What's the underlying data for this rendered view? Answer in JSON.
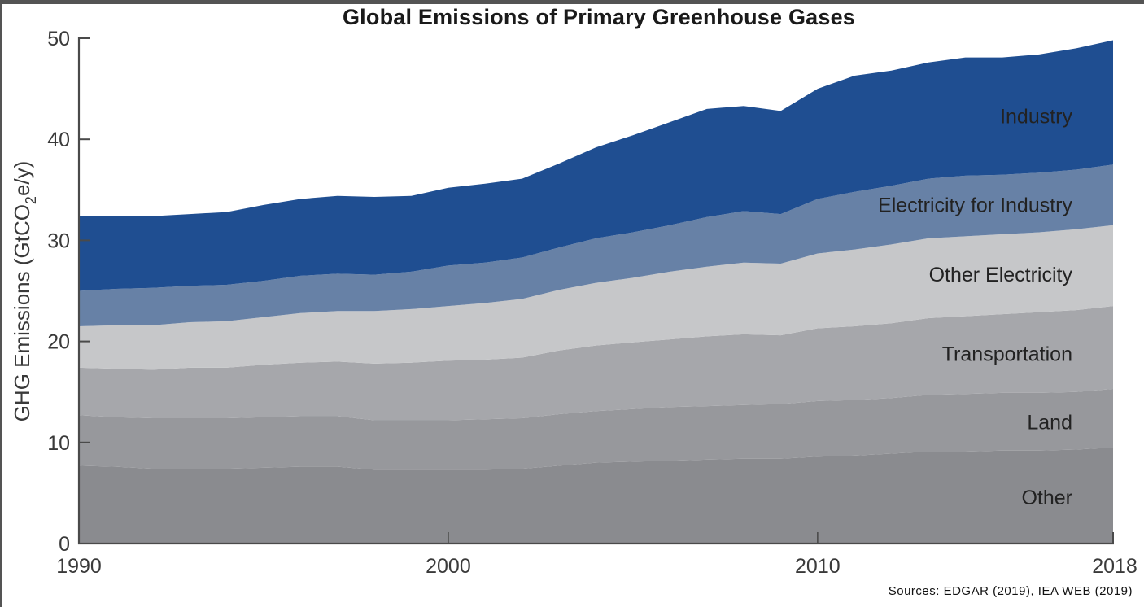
{
  "chart_data": {
    "type": "area",
    "stacked": true,
    "title": "Global Emissions of Primary Greenhouse Gases",
    "xlabel": "",
    "ylabel": "GHG Emissions (GtCO2e/y)",
    "ylabel_parts": {
      "pre": "GHG Emissions (GtCO",
      "sub": "2",
      "post": "e/y)"
    },
    "xlim": [
      1990,
      2018
    ],
    "ylim": [
      0,
      50
    ],
    "x_ticks": [
      1990,
      2000,
      2010,
      2018
    ],
    "y_ticks": [
      0,
      10,
      20,
      30,
      40,
      50
    ],
    "grid": false,
    "legend": "inline-right",
    "source_note": "Sources: EDGAR (2019), IEA WEB (2019)",
    "x": [
      1990,
      1991,
      1992,
      1993,
      1994,
      1995,
      1996,
      1997,
      1998,
      1999,
      2000,
      2001,
      2002,
      2003,
      2004,
      2005,
      2006,
      2007,
      2008,
      2009,
      2010,
      2011,
      2012,
      2013,
      2014,
      2015,
      2016,
      2017,
      2018
    ],
    "series": [
      {
        "name": "Other",
        "color": "#8a8b8f",
        "values": [
          7.7,
          7.6,
          7.4,
          7.4,
          7.4,
          7.5,
          7.6,
          7.6,
          7.3,
          7.3,
          7.3,
          7.3,
          7.4,
          7.7,
          8.0,
          8.1,
          8.2,
          8.3,
          8.4,
          8.4,
          8.6,
          8.7,
          8.9,
          9.1,
          9.1,
          9.2,
          9.2,
          9.3,
          9.5
        ]
      },
      {
        "name": "Land",
        "color": "#97989c",
        "values": [
          5.0,
          4.9,
          5.0,
          5.0,
          5.0,
          5.0,
          5.0,
          5.0,
          4.9,
          4.9,
          4.9,
          5.0,
          5.0,
          5.1,
          5.1,
          5.2,
          5.3,
          5.3,
          5.3,
          5.4,
          5.5,
          5.5,
          5.5,
          5.6,
          5.7,
          5.7,
          5.7,
          5.7,
          5.8
        ]
      },
      {
        "name": "Transportation",
        "color": "#a6a7ab",
        "values": [
          4.7,
          4.8,
          4.8,
          5.0,
          5.0,
          5.2,
          5.3,
          5.4,
          5.6,
          5.7,
          5.9,
          5.9,
          6.0,
          6.3,
          6.5,
          6.6,
          6.7,
          6.9,
          7.0,
          6.8,
          7.2,
          7.3,
          7.4,
          7.6,
          7.7,
          7.8,
          8.0,
          8.1,
          8.2
        ]
      },
      {
        "name": "Other Electricity",
        "color": "#c6c7c9",
        "values": [
          4.1,
          4.3,
          4.4,
          4.5,
          4.6,
          4.7,
          4.9,
          5.0,
          5.2,
          5.3,
          5.4,
          5.6,
          5.8,
          6.0,
          6.2,
          6.4,
          6.7,
          6.9,
          7.1,
          7.1,
          7.4,
          7.6,
          7.8,
          7.9,
          7.9,
          7.9,
          7.9,
          8.0,
          8.0
        ]
      },
      {
        "name": "Electricity for Industry",
        "color": "#6781a6",
        "values": [
          3.5,
          3.6,
          3.7,
          3.6,
          3.6,
          3.6,
          3.7,
          3.7,
          3.6,
          3.7,
          4.0,
          4.0,
          4.1,
          4.2,
          4.4,
          4.5,
          4.6,
          4.9,
          5.1,
          4.9,
          5.4,
          5.7,
          5.8,
          5.9,
          6.0,
          5.9,
          5.9,
          5.9,
          6.0
        ]
      },
      {
        "name": "Industry",
        "color": "#1f4e91",
        "values": [
          7.4,
          7.2,
          7.1,
          7.1,
          7.2,
          7.5,
          7.6,
          7.7,
          7.7,
          7.5,
          7.7,
          7.8,
          7.8,
          8.3,
          9.0,
          9.6,
          10.2,
          10.7,
          10.4,
          10.2,
          10.9,
          11.5,
          11.4,
          11.5,
          11.7,
          11.6,
          11.7,
          12.0,
          12.3
        ]
      }
    ]
  }
}
